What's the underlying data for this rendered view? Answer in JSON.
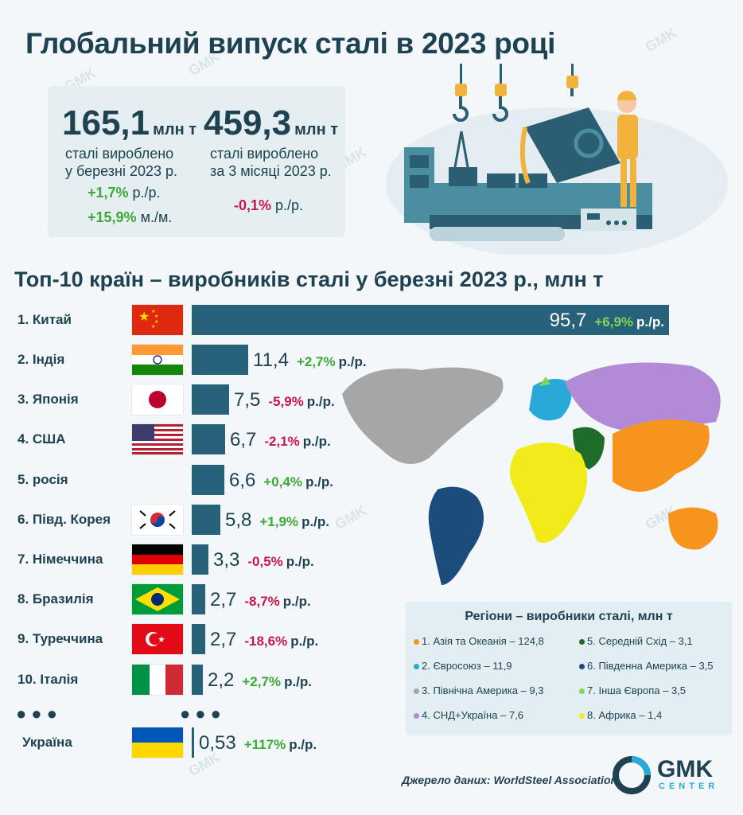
{
  "title": "Глобальний випуск сталі в 2023 році",
  "kpis": [
    {
      "value": "165,1",
      "unit": "млн т",
      "desc1": "сталі вироблено",
      "desc2": "у березні 2023 р.",
      "changes": [
        {
          "value": "+1,7%",
          "unit": "р./р."
        },
        {
          "value": "+15,9%",
          "unit": "м./м."
        }
      ]
    },
    {
      "value": "459,3",
      "unit": "млн т",
      "desc1": "сталі вироблено",
      "desc2": "за 3 місяці 2023 р.",
      "changes": [
        {
          "value": "-0,1%",
          "unit": "р./р."
        }
      ]
    }
  ],
  "colors": {
    "bar": "#27617a",
    "positive": "#3aaa35",
    "negative": "#c8174f",
    "title": "#1f4252"
  },
  "chart_data": {
    "type": "bar",
    "orientation": "horizontal",
    "title": "Топ-10 країн – виробників сталі у березні 2023 р., млн т",
    "categories": [
      "1. Китай",
      "2. Індія",
      "3. Японія",
      "4. США",
      "5. росія",
      "6. Півд. Корея",
      "7. Німеччина",
      "8. Бразилія",
      "9. Туреччина",
      "10. Італія",
      "Україна"
    ],
    "values": [
      95.7,
      11.4,
      7.5,
      6.7,
      6.6,
      5.8,
      3.3,
      2.7,
      2.7,
      2.2,
      0.53
    ],
    "value_labels": [
      "95,7",
      "11,4",
      "7,5",
      "6,7",
      "6,6",
      "5,8",
      "3,3",
      "2,7",
      "2,7",
      "2,2",
      "0,53"
    ],
    "changes": [
      "+6,9%",
      "+2,7%",
      "-5,9%",
      "-2,1%",
      "+0,4%",
      "+1,9%",
      "-0,5%",
      "-8,7%",
      "-18,6%",
      "+2,7%",
      "+117%"
    ],
    "change_unit": "р./р.",
    "flags": [
      "china-flag",
      "india-flag",
      "japan-flag",
      "usa-flag",
      "",
      "south-korea-flag",
      "germany-flag",
      "brazil-flag",
      "turkey-flag",
      "italy-flag",
      "ukraine-flag"
    ],
    "ellipsis": "●●●"
  },
  "regions": {
    "title": "Регіони  – виробники сталі, млн т",
    "items": [
      {
        "label": "1. Азія та Океанія – 124,8",
        "color": "#f7941d"
      },
      {
        "label": "5. Середній Схід – 3,1",
        "color": "#1f6b2a"
      },
      {
        "label": "2. Євросоюз – 11,9",
        "color": "#29a9d8"
      },
      {
        "label": "6. Південна Америка – 3,5",
        "color": "#1c4c7c"
      },
      {
        "label": "3. Північна Америка – 9,3",
        "color": "#a6a6a6"
      },
      {
        "label": "7. Інша Європа – 3,5",
        "color": "#7ed957"
      },
      {
        "label": "4. СНД+Україна – 7,6",
        "color": "#b38ad6"
      },
      {
        "label": "8. Африка – 1,4",
        "color": "#f2ea1b"
      }
    ]
  },
  "source": "Джерело даних: WorldSteel Association",
  "brand": {
    "name": "GMK",
    "sub": "CENTER",
    "color": "#29a9d8"
  },
  "watermark": "GMK"
}
